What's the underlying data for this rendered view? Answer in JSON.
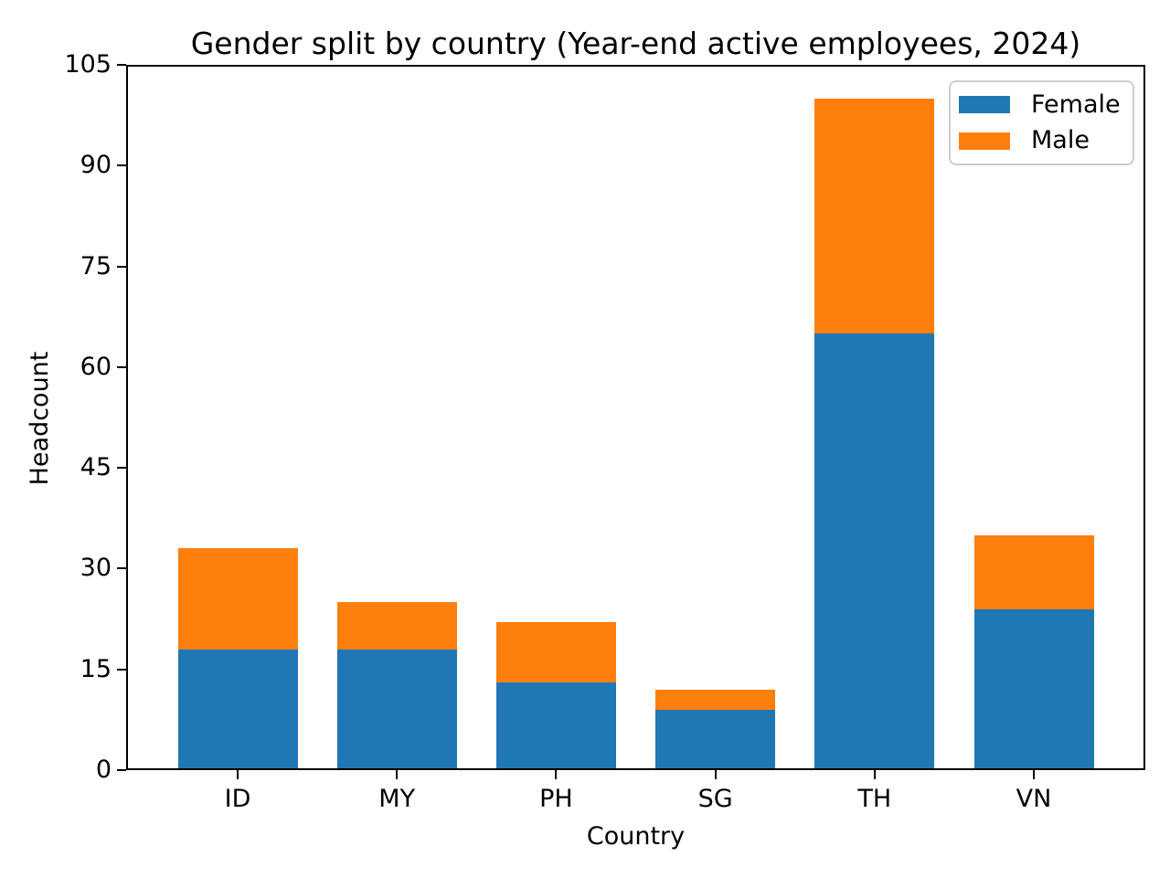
{
  "chart_data": {
    "type": "bar",
    "stacked": true,
    "title": "Gender split by country (Year-end active employees, 2024)",
    "xlabel": "Country",
    "ylabel": "Headcount",
    "categories": [
      "ID",
      "MY",
      "PH",
      "SG",
      "TH",
      "VN"
    ],
    "series": [
      {
        "name": "Female",
        "color": "#1f77b4",
        "values": [
          18,
          18,
          13,
          9,
          65,
          24
        ]
      },
      {
        "name": "Male",
        "color": "#ff7f0e",
        "values": [
          15,
          7,
          9,
          3,
          35,
          11
        ]
      }
    ],
    "totals": [
      33,
      25,
      22,
      12,
      100,
      35
    ],
    "ylim": [
      0,
      105
    ],
    "yticks": [
      0,
      15,
      30,
      45,
      60,
      75,
      90,
      105
    ],
    "grid": false,
    "legend_position": "upper right"
  }
}
